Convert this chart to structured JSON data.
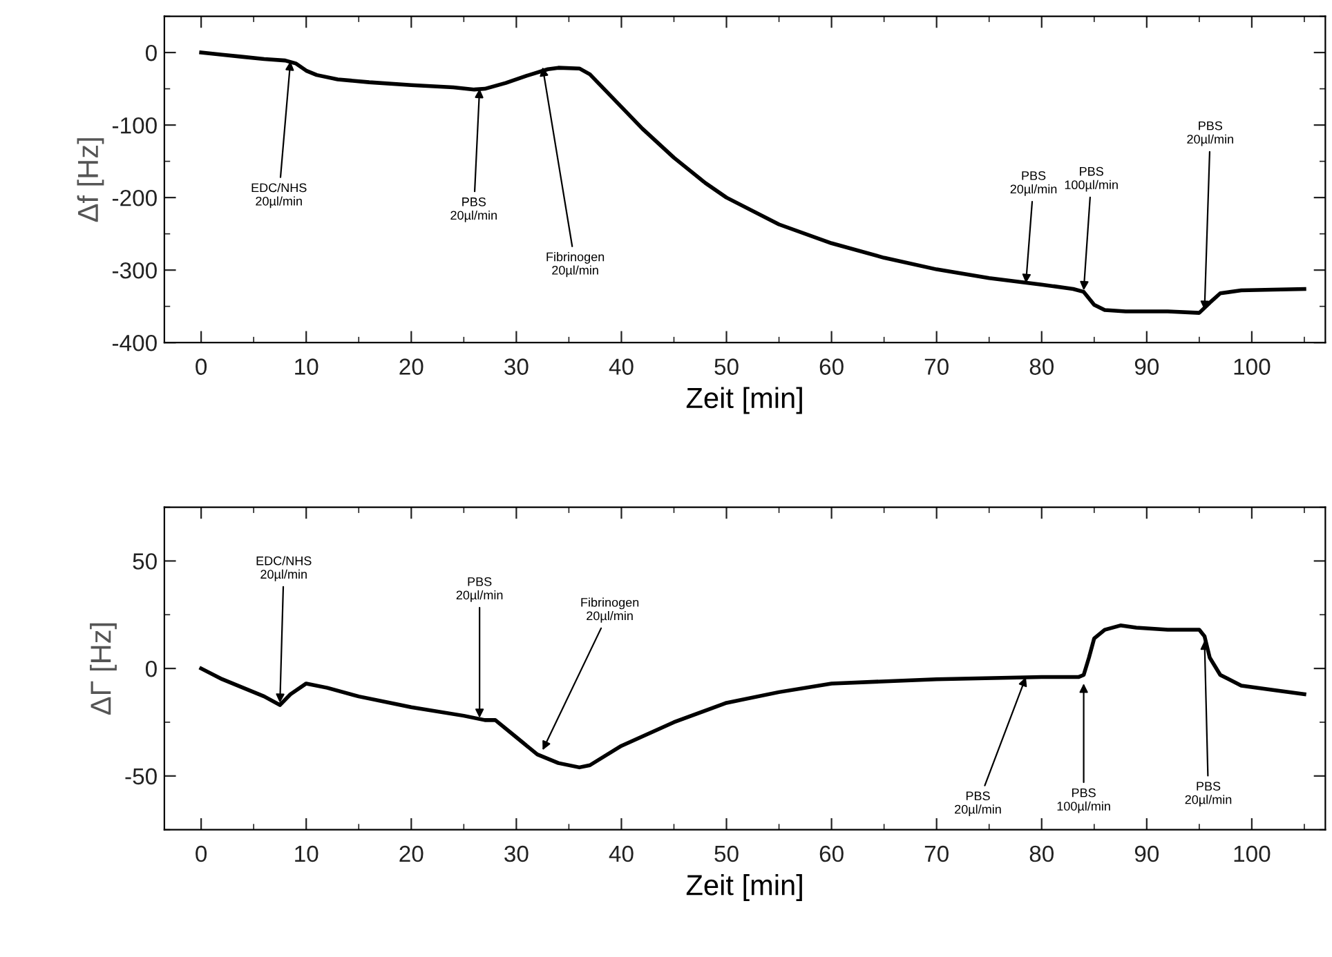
{
  "chart_data": [
    {
      "type": "line",
      "xlabel": "Zeit [min]",
      "ylabel": "Δf [Hz]",
      "xlim": [
        -3.5,
        107
      ],
      "ylim": [
        -400,
        50
      ],
      "xticks": [
        0,
        10,
        20,
        30,
        40,
        50,
        60,
        70,
        80,
        90,
        100
      ],
      "yticks": [
        -400,
        -300,
        -200,
        -100,
        0
      ],
      "grid": false,
      "legend": false,
      "marker": "none",
      "line_style": "solid",
      "series": [
        {
          "color": "#000000",
          "x": [
            0,
            2,
            4,
            6,
            8,
            9,
            10,
            11,
            13,
            16,
            20,
            24,
            26,
            27,
            29,
            31,
            33,
            34,
            36,
            37,
            38,
            40,
            42,
            45,
            48,
            50,
            55,
            60,
            65,
            70,
            75,
            80,
            83,
            84,
            85,
            86,
            88,
            92,
            95,
            96,
            97,
            99,
            102,
            105
          ],
          "values": [
            0,
            -3,
            -6,
            -9,
            -11,
            -15,
            -25,
            -31,
            -37,
            -41,
            -45,
            -48,
            -51,
            -50,
            -42,
            -32,
            -23,
            -21,
            -22,
            -30,
            -45,
            -75,
            -105,
            -145,
            -180,
            -200,
            -237,
            -263,
            -283,
            -299,
            -311,
            -320,
            -326,
            -330,
            -348,
            -355,
            -357,
            -357,
            -359,
            -345,
            -332,
            -328,
            -327,
            -326
          ]
        }
      ],
      "annotations": [
        {
          "text": "EDC/NHS\n20µl/min",
          "x": 8.5,
          "y": -12
        },
        {
          "text": "PBS\n20µl/min",
          "x": 26.5,
          "y": -50
        },
        {
          "text": "Fibrinogen\n20µl/min",
          "x": 32.5,
          "y": -20
        },
        {
          "text": "PBS\n20µl/min",
          "x": 78.5,
          "y": -318
        },
        {
          "text": "PBS\n100µl/min",
          "x": 84,
          "y": -328
        },
        {
          "text": "PBS\n20µl/min",
          "x": 95.5,
          "y": -355
        }
      ]
    },
    {
      "type": "line",
      "xlabel": "Zeit [min]",
      "ylabel": "ΔΓ [Hz]",
      "xlim": [
        -3.5,
        107
      ],
      "ylim": [
        -75,
        75
      ],
      "xticks": [
        0,
        10,
        20,
        30,
        40,
        50,
        60,
        70,
        80,
        90,
        100
      ],
      "yticks": [
        -50,
        0,
        50
      ],
      "grid": false,
      "legend": false,
      "marker": "none",
      "line_style": "solid",
      "series": [
        {
          "color": "#000000",
          "x": [
            0,
            2,
            4,
            6,
            7.5,
            8.5,
            10,
            12,
            15,
            20,
            25,
            27,
            28,
            30,
            32,
            34,
            36,
            37,
            40,
            45,
            50,
            55,
            60,
            70,
            80,
            83.5,
            84,
            84.5,
            85,
            86,
            87.5,
            89,
            92,
            95,
            95.5,
            96,
            97,
            99,
            102,
            105
          ],
          "values": [
            0,
            -5,
            -9,
            -13,
            -17,
            -12,
            -7,
            -9,
            -13,
            -18,
            -22,
            -24,
            -24,
            -32,
            -40,
            -44,
            -46,
            -45,
            -36,
            -25,
            -16,
            -11,
            -7,
            -5,
            -4,
            -4,
            -3,
            5,
            14,
            18,
            20,
            19,
            18,
            18,
            15,
            5,
            -3,
            -8,
            -10,
            -12
          ]
        }
      ],
      "annotations": [
        {
          "text": "EDC/NHS\n20µl/min",
          "x": 7.5,
          "y": -16
        },
        {
          "text": "PBS\n20µl/min",
          "x": 26.5,
          "y": -23
        },
        {
          "text": "Fibrinogen\n20µl/min",
          "x": 32.5,
          "y": -38
        },
        {
          "text": "PBS\n20µl/min",
          "x": 78.5,
          "y": -4
        },
        {
          "text": "PBS\n100µl/min",
          "x": 84,
          "y": -7
        },
        {
          "text": "PBS\n20µl/min",
          "x": 95.5,
          "y": 13
        }
      ]
    }
  ]
}
